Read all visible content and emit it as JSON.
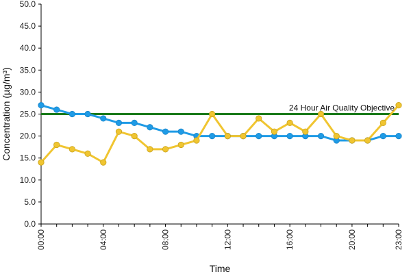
{
  "chart_data": {
    "type": "line",
    "xlabel": "Time",
    "ylabel": "Concentration (µg/m³)",
    "ylim": [
      0,
      50
    ],
    "y_ticks": [
      "0.0",
      "5.0",
      "10.0",
      "15.0",
      "20.0",
      "25.0",
      "30.0",
      "35.0",
      "40.0",
      "45.0",
      "50.0"
    ],
    "x_tick_labels": [
      "00:00",
      "04:00",
      "08:00",
      "12:00",
      "16:00",
      "20:00",
      "23:00"
    ],
    "x_tick_hours": [
      0,
      4,
      8,
      12,
      16,
      20,
      23
    ],
    "x": [
      0,
      1,
      2,
      3,
      4,
      5,
      6,
      7,
      8,
      9,
      10,
      11,
      12,
      13,
      14,
      15,
      16,
      17,
      18,
      19,
      20,
      21,
      22,
      23
    ],
    "grid": false,
    "series": [
      {
        "color": "#1f9be6",
        "values": [
          27,
          26,
          25,
          25,
          24,
          23,
          23,
          22,
          21,
          21,
          20,
          20,
          20,
          20,
          20,
          20,
          20,
          20,
          20,
          19,
          19,
          19,
          20,
          20
        ]
      },
      {
        "color": "#f0c531",
        "values": [
          14,
          18,
          17,
          16,
          14,
          21,
          20,
          17,
          17,
          18,
          19,
          25,
          20,
          20,
          24,
          21,
          23,
          21,
          25,
          20,
          19,
          19,
          23,
          27
        ]
      }
    ],
    "objective": {
      "value": 25,
      "label": "24 Hour Air Quality Objective",
      "color": "#1a7a1a"
    }
  }
}
